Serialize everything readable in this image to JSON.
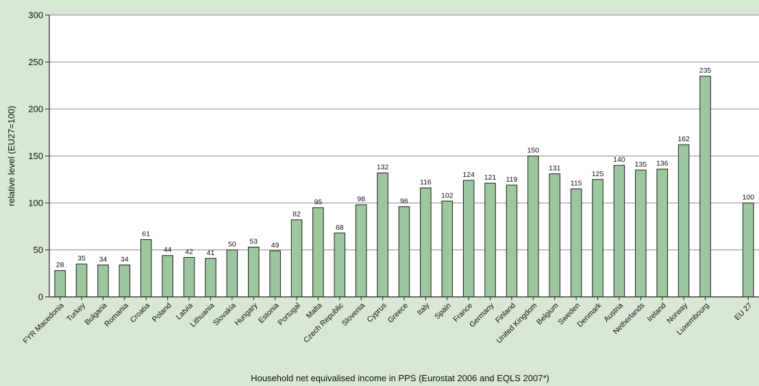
{
  "chart_data": {
    "type": "bar",
    "xlabel": "Household net equivalised income in PPS (Eurostat 2006 and EQLS 2007*)",
    "ylabel": "relative level (EU27=100)",
    "ylim": [
      0,
      300
    ],
    "yticks": [
      0,
      50,
      100,
      150,
      200,
      250,
      300
    ],
    "grid": true,
    "colors": {
      "bar": "#9dc79f",
      "bar_edge": "#1a1a1a",
      "background": "#d9e7d5",
      "plot_background": "#ffffff",
      "grid": "#8a8a8a"
    },
    "categories": [
      "FYR Macedonia",
      "Turkey",
      "Bulgaria",
      "Romania",
      "Croatia",
      "Poland",
      "Latvia",
      "Lithuania",
      "Slovakia",
      "Hungary",
      "Estonia",
      "Portugal",
      "Malta",
      "Czech Republic",
      "Slovenia",
      "Cyprus",
      "Greece",
      "Italy",
      "Spain",
      "France",
      "Germany",
      "Finland",
      "United Kingdom",
      "Belgium",
      "Sweden",
      "Denmark",
      "Austria",
      "Netherlands",
      "Ireland",
      "Norway",
      "Luxembourg",
      "EU 27"
    ],
    "values": [
      28,
      35,
      34,
      34,
      61,
      44,
      42,
      41,
      50,
      53,
      49,
      82,
      95,
      68,
      98,
      132,
      96,
      116,
      102,
      124,
      121,
      119,
      150,
      131,
      115,
      125,
      140,
      135,
      136,
      162,
      235,
      100
    ],
    "labels": [
      "28",
      "35",
      "34",
      "34",
      "61",
      "44",
      "42",
      "41",
      "50",
      "53",
      "49",
      "82",
      "95",
      "68",
      "98",
      "132",
      "96",
      "116",
      "102",
      "124",
      "121",
      "119",
      "150",
      "131",
      "115",
      "125",
      "140",
      "135",
      "136",
      "162",
      "235",
      "100"
    ]
  }
}
